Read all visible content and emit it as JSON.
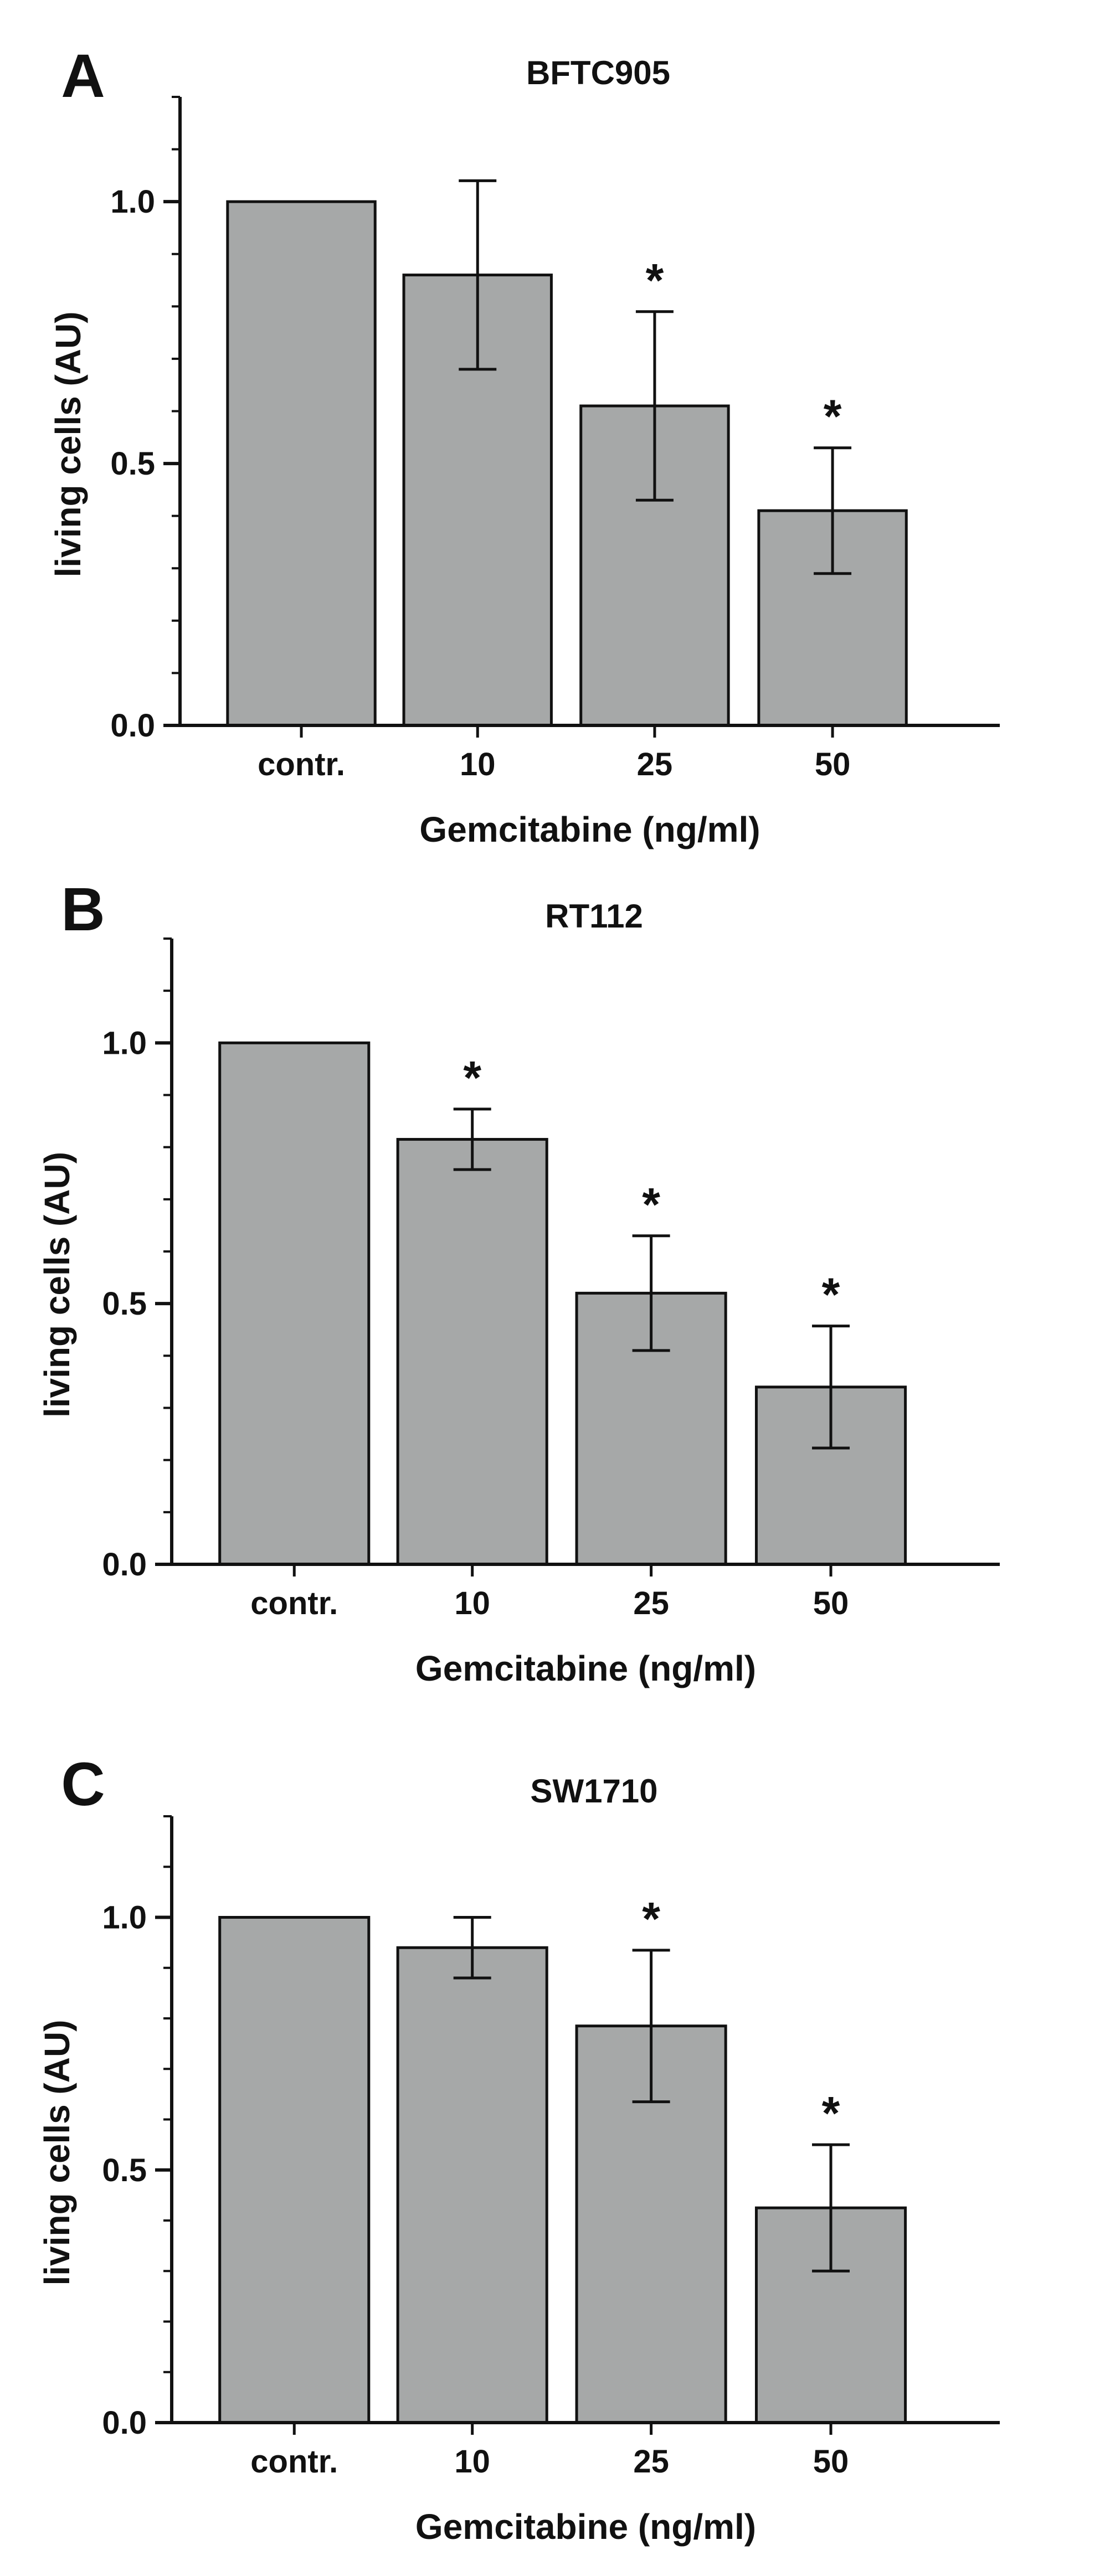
{
  "figure": {
    "colors": {
      "bar_fill": "#a6a8a8",
      "bar_stroke": "#111111",
      "axis": "#111111"
    }
  },
  "chart_data": [
    {
      "panel": "A",
      "type": "bar",
      "title": "BFTC905",
      "xlabel": "Gemcitabine (ng/ml)",
      "ylabel": "living cells (AU)",
      "categories": [
        "contr.",
        "10",
        "25",
        "50"
      ],
      "values": [
        1.0,
        0.86,
        0.61,
        0.41
      ],
      "errors": [
        0.0,
        0.18,
        0.18,
        0.12
      ],
      "significance": [
        "",
        "",
        "*",
        "*"
      ],
      "ylim": [
        0,
        1.2
      ],
      "yticks": [
        0.0,
        0.5,
        1.0
      ],
      "ytick_labels": [
        "0.0",
        "0.5",
        "1.0"
      ],
      "grid": false
    },
    {
      "panel": "B",
      "type": "bar",
      "title": "RT112",
      "xlabel": "Gemcitabine (ng/ml)",
      "ylabel": "living cells (AU)",
      "categories": [
        "contr.",
        "10",
        "25",
        "50"
      ],
      "values": [
        1.0,
        0.815,
        0.52,
        0.34
      ],
      "errors": [
        0.0,
        0.058,
        0.11,
        0.117
      ],
      "significance": [
        "",
        "*",
        "*",
        "*"
      ],
      "ylim": [
        0,
        1.2
      ],
      "yticks": [
        0.0,
        0.5,
        1.0
      ],
      "ytick_labels": [
        "0.0",
        "0.5",
        "1.0"
      ],
      "grid": false
    },
    {
      "panel": "C",
      "type": "bar",
      "title": "SW1710",
      "xlabel": "Gemcitabine (ng/ml)",
      "ylabel": "living cells (AU)",
      "categories": [
        "contr.",
        "10",
        "25",
        "50"
      ],
      "values": [
        1.0,
        0.94,
        0.785,
        0.425
      ],
      "errors": [
        0.0,
        0.06,
        0.15,
        0.125
      ],
      "significance": [
        "",
        "",
        "*",
        "*"
      ],
      "ylim": [
        0,
        1.2
      ],
      "yticks": [
        0.0,
        0.5,
        1.0
      ],
      "ytick_labels": [
        "0.0",
        "0.5",
        "1.0"
      ],
      "grid": false
    }
  ]
}
